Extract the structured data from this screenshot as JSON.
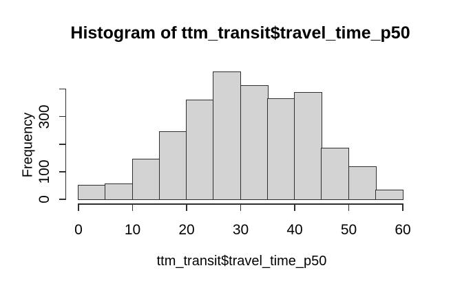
{
  "chart_data": {
    "type": "bar",
    "subtype": "histogram",
    "title": "Histogram of ttm_transit$travel_time_p50",
    "xlabel": "ttm_transit$travel_time_p50",
    "ylabel": "Frequency",
    "bin_width": 5,
    "bin_edges": [
      0,
      5,
      10,
      15,
      20,
      25,
      30,
      35,
      40,
      45,
      50,
      55,
      60
    ],
    "values": [
      51,
      56,
      144,
      245,
      359,
      461,
      411,
      363,
      386,
      184,
      118,
      32
    ],
    "xlim": [
      0,
      60
    ],
    "ylim": [
      0,
      460
    ],
    "x_ticks": [
      {
        "value": 0,
        "label": "0"
      },
      {
        "value": 10,
        "label": "10"
      },
      {
        "value": 20,
        "label": "20"
      },
      {
        "value": 30,
        "label": "30"
      },
      {
        "value": 40,
        "label": "40"
      },
      {
        "value": 50,
        "label": "50"
      },
      {
        "value": 60,
        "label": "60"
      }
    ],
    "y_ticks": [
      {
        "value": 0,
        "label": "0"
      },
      {
        "value": 100,
        "label": "100"
      },
      {
        "value": 200,
        "label": ""
      },
      {
        "value": 300,
        "label": "300"
      },
      {
        "value": 400,
        "label": ""
      }
    ],
    "grid": false,
    "legend": null,
    "colors": {
      "bar_fill": "#d3d3d3",
      "bar_border": "#2e2e2e",
      "axis": "#2e2e2e",
      "text": "#000000",
      "background": "#ffffff"
    }
  }
}
